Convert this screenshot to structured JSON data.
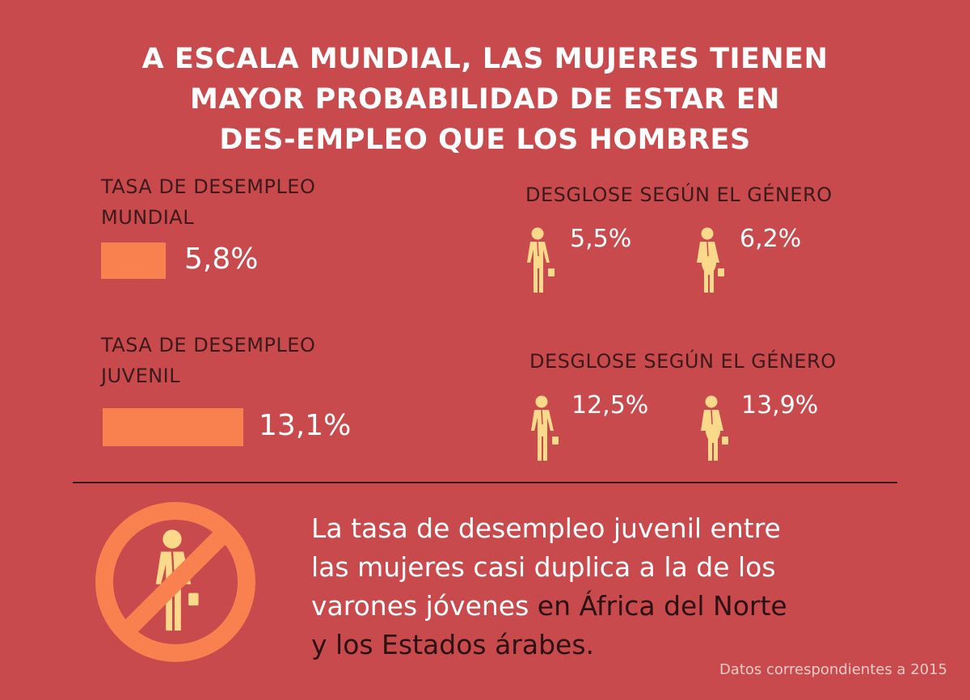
{
  "title": {
    "line1": "A ESCALA MUNDIAL, LAS MUJERES TIENEN",
    "line2": "MAYOR PROBABILIDAD DE ESTAR EN",
    "line3": "DES-EMPLEO QUE LOS HOMBRES"
  },
  "global": {
    "label1": "TASA DE DESEMPLEO",
    "label2": "MUNDIAL",
    "value": "5,8%",
    "breakdown_title": "DESGLOSE SEGÚN EL GÉNERO",
    "men": "5,5%",
    "women": "6,2%"
  },
  "youth": {
    "label1": "TASA DE DESEMPLEO",
    "label2": "JUVENIL",
    "value": "13,1%",
    "breakdown_title": "DESGLOSE SEGÚN EL GÉNERO",
    "men": "12,5%",
    "women": "13,9%"
  },
  "message": {
    "line1": "La tasa de desempleo juvenil entre",
    "line2": "las mujeres casi duplica a la de los",
    "line3a": "varones jóvenes ",
    "line3b": "en África del Norte",
    "line4": "y los Estados árabes."
  },
  "footnote": "Datos correspondientes a 2015",
  "colors": {
    "background": "#c94a4d",
    "bar": "#f9804f",
    "icon": "#fbd98a"
  },
  "icons": [
    "man-icon",
    "woman-icon",
    "no-youth-employment-icon"
  ]
}
